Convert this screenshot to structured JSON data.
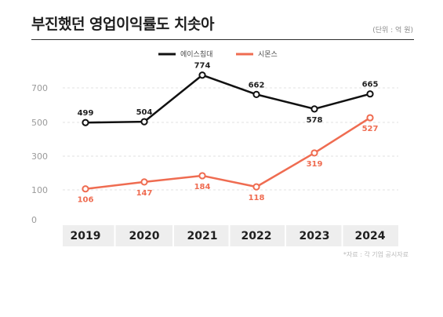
{
  "header": {
    "title": "부진했던 영업이익률도 치솟아",
    "unit": "(단위 : 억 원)"
  },
  "footer": {
    "source": "*자료 : 각 기업 공시자료"
  },
  "colors": {
    "series_1": "#111111",
    "series_2": "#ef6c51",
    "axis_band": "#eeeeee",
    "gridline": "#e2e2e2"
  },
  "chart_data": {
    "type": "line",
    "title": "부진했던 영업이익률도 치솟아",
    "xlabel": "",
    "ylabel": "",
    "categories": [
      "2019",
      "2020",
      "2021",
      "2022",
      "2023",
      "2024"
    ],
    "yticks": [
      0,
      100,
      300,
      500,
      700
    ],
    "grid": true,
    "legend_position": "top-center",
    "series": [
      {
        "name": "에이스침대",
        "values": [
          499,
          504,
          774,
          662,
          578,
          665
        ],
        "color": "#111111",
        "label_position": [
          "above",
          "above",
          "above",
          "above",
          "below",
          "above"
        ]
      },
      {
        "name": "시몬스",
        "values": [
          106,
          147,
          184,
          118,
          319,
          527
        ],
        "color": "#ef6c51",
        "label_position": [
          "below",
          "below",
          "below",
          "below",
          "below",
          "below"
        ]
      }
    ]
  }
}
